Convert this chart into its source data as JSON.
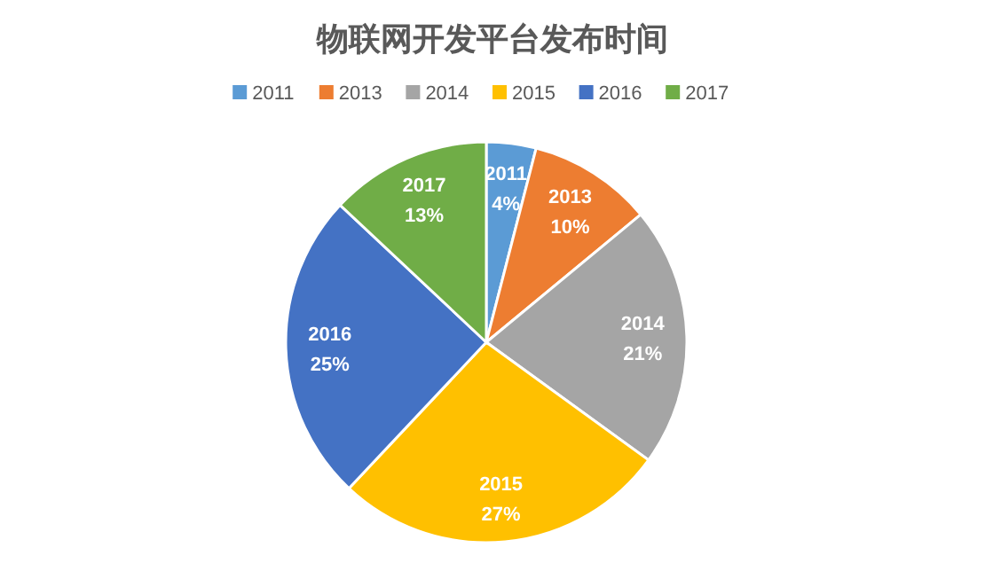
{
  "chart_data": {
    "type": "pie",
    "title": "物联网开发平台发布时间",
    "categories": [
      "2011",
      "2013",
      "2014",
      "2015",
      "2016",
      "2017"
    ],
    "values": [
      4,
      10,
      21,
      27,
      25,
      13
    ],
    "value_labels": [
      "4%",
      "10%",
      "21%",
      "27%",
      "25%",
      "13%"
    ],
    "colors": [
      "#5b9bd5",
      "#ed7d31",
      "#a5a5a5",
      "#ffc000",
      "#4472c4",
      "#70ad47"
    ],
    "legend": "top"
  }
}
